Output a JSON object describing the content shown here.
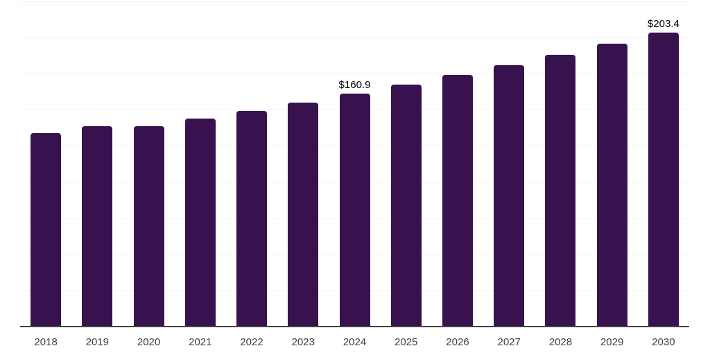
{
  "chart_data": {
    "type": "bar",
    "title": "",
    "xlabel": "",
    "ylabel": "",
    "categories": [
      "2018",
      "2019",
      "2020",
      "2021",
      "2022",
      "2023",
      "2024",
      "2025",
      "2026",
      "2027",
      "2028",
      "2029",
      "2030"
    ],
    "values": [
      133.8,
      138.6,
      138.6,
      143.9,
      149.1,
      154.7,
      160.9,
      167.4,
      173.9,
      180.8,
      188.0,
      195.6,
      203.4
    ],
    "data_labels": [
      null,
      null,
      null,
      null,
      null,
      null,
      "$160.9",
      null,
      null,
      null,
      null,
      null,
      "$203.4"
    ],
    "ylim": [
      0,
      225
    ],
    "grid": {
      "show": true,
      "step": 25
    },
    "legend": "none",
    "colors": {
      "bar": "#38124e",
      "gridline": "#f2f2f2",
      "axis_line": "#424242",
      "tick_label": "#3d3d3d",
      "data_label": "#000000",
      "background": "#ffffff"
    }
  }
}
